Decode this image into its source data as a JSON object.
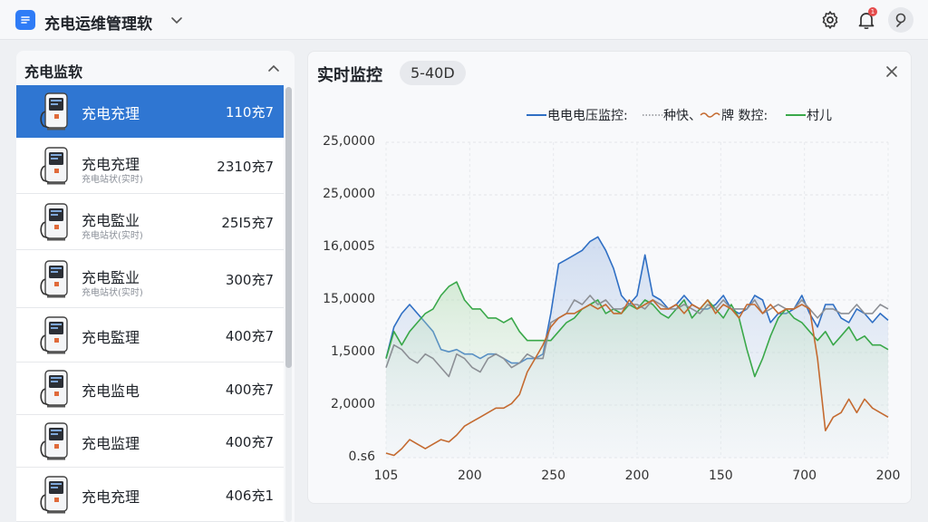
{
  "app": {
    "title": "充电运维管理软",
    "notification_count": "1"
  },
  "left_panel": {
    "title": "充电监软",
    "items": [
      {
        "name": "充电充理",
        "sub": "",
        "value": "110充7",
        "selected": true
      },
      {
        "name": "充电充理",
        "sub": "充电站状(实时)",
        "value": "2310充7",
        "selected": false
      },
      {
        "name": "充电監业",
        "sub": "充电站状(实时)",
        "value": "25I5充7",
        "selected": false
      },
      {
        "name": "充电監业",
        "sub": "充电站状(实时)",
        "value": "300充7",
        "selected": false
      },
      {
        "name": "充电監理",
        "sub": "",
        "value": "400充7",
        "selected": false
      },
      {
        "name": "充电监电",
        "sub": "",
        "value": "400充7",
        "selected": false
      },
      {
        "name": "充电监理",
        "sub": "",
        "value": "400充7",
        "selected": false
      },
      {
        "name": "充电充理",
        "sub": "",
        "value": "406充1",
        "selected": false
      }
    ]
  },
  "main": {
    "title": "实时监控",
    "chip": "5-40D"
  },
  "colors": {
    "accent": "#2f76d2",
    "series_blue": "#2f6fc4",
    "series_gray": "#8c8f95",
    "series_orange": "#c46a30",
    "series_green": "#3aa84a"
  },
  "icons": {
    "logo": "app-logo-icon",
    "title_dropdown": "chevron-down-icon",
    "settings": "gear-icon",
    "notifications": "bell-icon",
    "user": "user-icon",
    "collapse": "chevron-up-icon",
    "close": "close-icon",
    "charger": "charger-icon"
  },
  "chart_data": {
    "type": "line",
    "title": "",
    "xlabel": "",
    "ylabel": "",
    "x_tick_labels": [
      "105",
      "200",
      "250",
      "200",
      "150",
      "700",
      "200"
    ],
    "y_tick_labels": [
      "25,0000",
      "25,0000",
      "16,0005",
      "15,0000",
      "1,5000",
      "2,0000",
      "0.s6"
    ],
    "y_range": [
      0,
      7
    ],
    "grid": true,
    "legend_position": "top-right",
    "legend": [
      {
        "label": "电电电压监控:",
        "color": "#2f6fc4",
        "style": "solid"
      },
      {
        "label": "种快、",
        "color": "#8c8f95",
        "style": "dotted"
      },
      {
        "label": "牌 数控:",
        "color": "#c46a30",
        "style": "wavy"
      },
      {
        "label": "村儿",
        "color": "#3aa84a",
        "style": "solid"
      }
    ],
    "series": [
      {
        "color": "#2f6fc4",
        "values": [
          2.2,
          2.9,
          3.2,
          3.4,
          3.2,
          3.0,
          2.8,
          2.4,
          2.35,
          2.4,
          2.3,
          2.3,
          2.2,
          2.3,
          2.3,
          2.2,
          2.1,
          2.1,
          2.2,
          2.2,
          2.3,
          3.2,
          4.3,
          4.4,
          4.5,
          4.6,
          4.8,
          4.9,
          4.6,
          4.2,
          3.6,
          3.4,
          3.6,
          4.5,
          3.6,
          3.5,
          3.3,
          3.4,
          3.6,
          3.4,
          3.3,
          3.3,
          3.4,
          3.6,
          3.3,
          3.2,
          3.3,
          3.6,
          3.5,
          3.0,
          3.2,
          3.2,
          3.3,
          3.6,
          3.2,
          2.9,
          3.4,
          3.4,
          3.1,
          3.0,
          3.3,
          3.2,
          3.0,
          3.2,
          3.05
        ],
        "fill": true
      },
      {
        "color": "#8c8f95",
        "values": [
          2.0,
          2.5,
          2.4,
          2.2,
          2.1,
          2.3,
          2.2,
          2.0,
          1.8,
          2.3,
          2.2,
          2.0,
          1.9,
          2.2,
          2.3,
          2.2,
          2.0,
          2.1,
          2.3,
          2.2,
          2.2,
          3.0,
          3.1,
          3.2,
          3.5,
          3.4,
          3.6,
          3.4,
          3.5,
          3.3,
          3.3,
          3.4,
          3.4,
          3.3,
          3.5,
          3.4,
          3.3,
          3.3,
          3.4,
          3.3,
          3.2,
          3.4,
          3.3,
          3.5,
          3.3,
          3.3,
          3.3,
          3.5,
          3.2,
          3.3,
          3.4,
          3.3,
          3.3,
          3.5,
          3.3,
          3.1,
          3.3,
          3.3,
          3.2,
          3.2,
          3.4,
          3.2,
          3.2,
          3.4,
          3.3
        ],
        "fill": false
      },
      {
        "color": "#c46a30",
        "values": [
          0.1,
          0.05,
          0.2,
          0.4,
          0.3,
          0.2,
          0.3,
          0.4,
          0.35,
          0.5,
          0.7,
          0.8,
          0.9,
          1.0,
          1.1,
          1.1,
          1.2,
          1.4,
          1.9,
          2.2,
          2.5,
          2.9,
          3.1,
          3.2,
          3.2,
          3.3,
          3.4,
          3.3,
          3.4,
          3.2,
          3.2,
          3.5,
          3.3,
          3.4,
          3.5,
          3.3,
          3.3,
          3.4,
          3.2,
          3.4,
          3.3,
          3.5,
          3.2,
          3.4,
          3.3,
          3.1,
          3.4,
          3.4,
          3.2,
          3.4,
          3.2,
          3.3,
          3.3,
          3.4,
          3.3,
          2.2,
          0.6,
          0.9,
          1.0,
          1.3,
          1.0,
          1.3,
          1.1,
          1.0,
          0.9
        ],
        "fill": false
      },
      {
        "color": "#3aa84a",
        "values": [
          2.2,
          2.8,
          2.5,
          2.8,
          3.0,
          3.2,
          3.3,
          3.6,
          3.8,
          3.9,
          3.5,
          3.3,
          3.3,
          3.1,
          3.1,
          3.0,
          3.1,
          2.8,
          2.6,
          2.6,
          2.6,
          2.6,
          2.8,
          3.0,
          3.1,
          3.3,
          3.4,
          3.5,
          3.2,
          3.3,
          3.2,
          3.4,
          3.3,
          3.5,
          3.4,
          3.2,
          3.1,
          3.3,
          3.5,
          3.1,
          3.3,
          3.5,
          3.3,
          3.1,
          3.4,
          3.1,
          2.4,
          1.8,
          2.2,
          2.7,
          3.1,
          3.3,
          3.1,
          3.0,
          2.8,
          2.6,
          2.8,
          2.5,
          2.7,
          2.9,
          2.6,
          2.7,
          2.5,
          2.5,
          2.4
        ],
        "fill": true
      }
    ]
  }
}
